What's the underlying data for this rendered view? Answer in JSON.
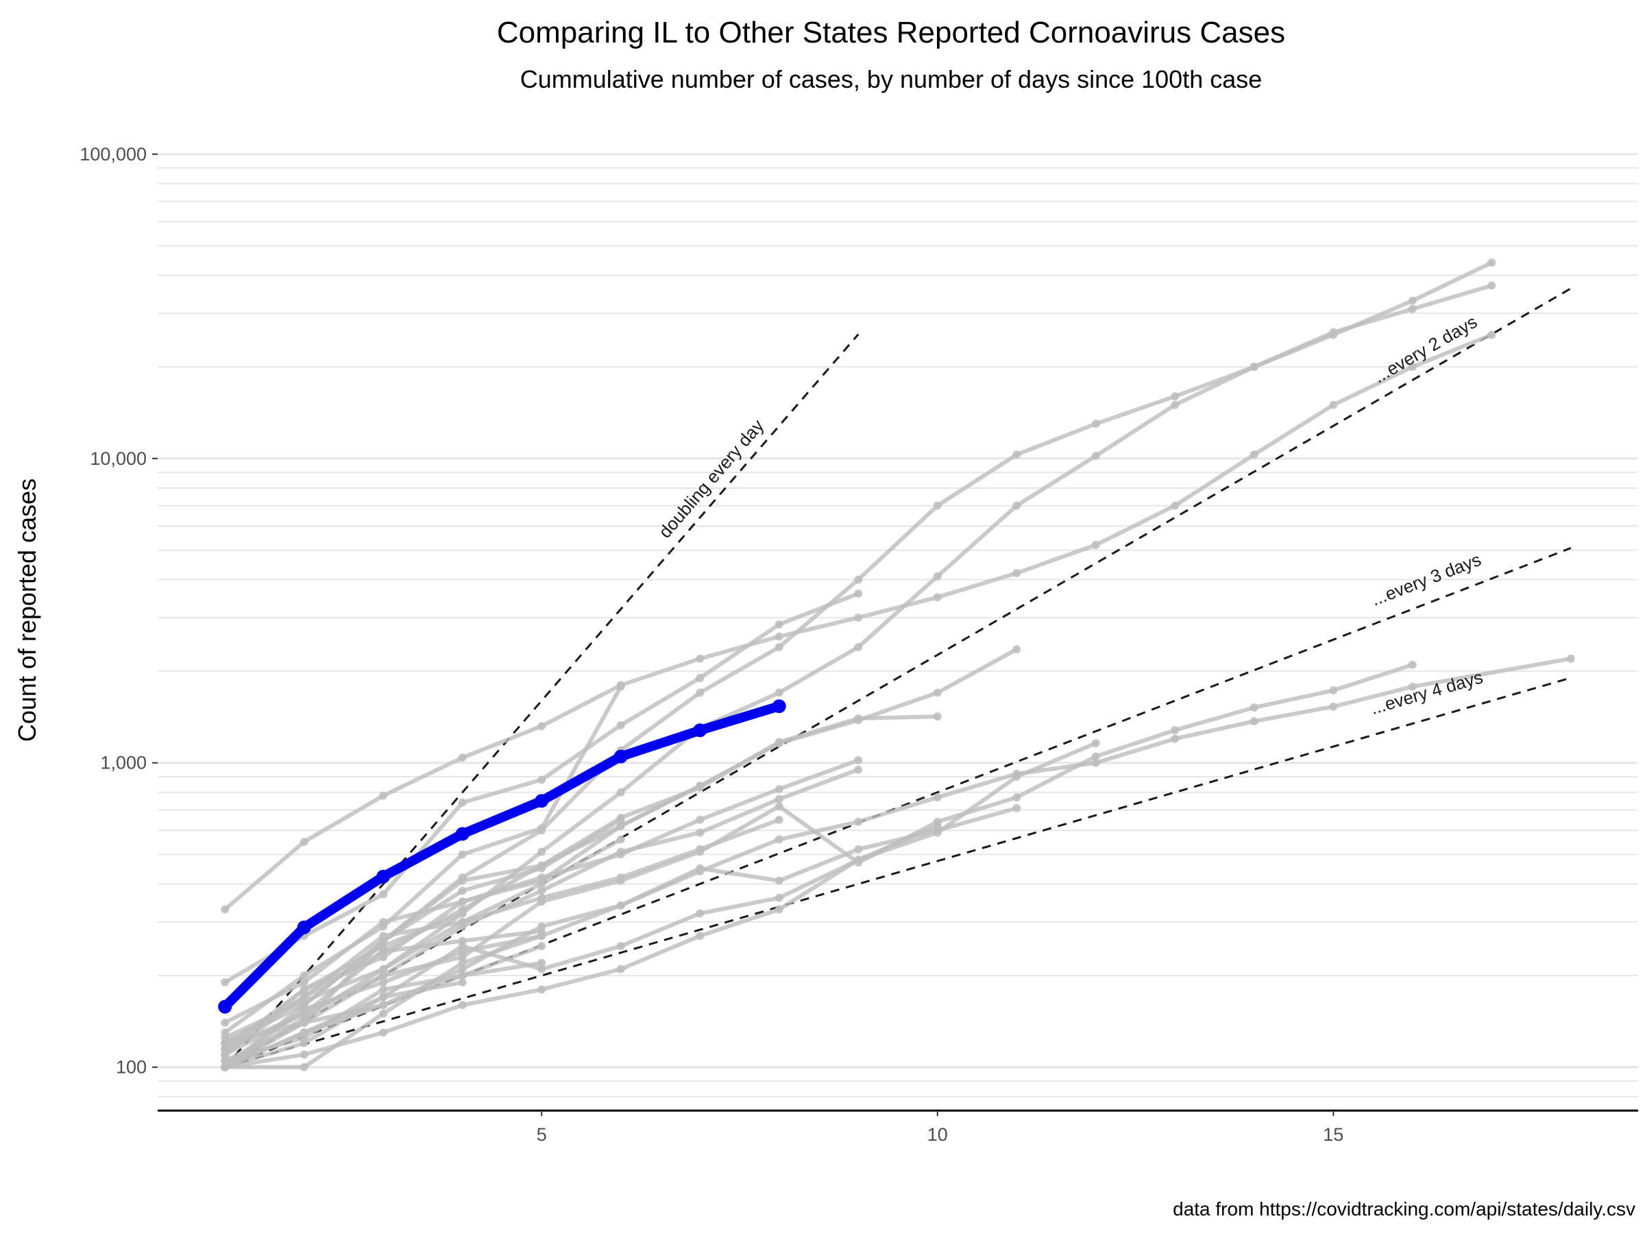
{
  "chart_data": {
    "type": "line",
    "title": "Comparing IL to Other States Reported Cornoavirus Cases",
    "subtitle": "Cummulative number of cases, by number of days since 100th case",
    "xlabel": "",
    "ylabel": "Count of reported cases",
    "caption": "data from https://covidtracking.com/api/states/daily.csv",
    "y_scale": "log10",
    "xlim": [
      0.15,
      18.85
    ],
    "ylim": [
      72,
      140000
    ],
    "x_ticks": [
      {
        "value": 5,
        "label": "5"
      },
      {
        "value": 10,
        "label": "10"
      },
      {
        "value": 15,
        "label": "15"
      }
    ],
    "y_ticks": [
      {
        "value": 100,
        "label": "100"
      },
      {
        "value": 1000,
        "label": "1,000"
      },
      {
        "value": 10000,
        "label": "10,000"
      },
      {
        "value": 100000,
        "label": "100,000"
      }
    ],
    "grid": true,
    "colors": {
      "highlight": "#0000ee",
      "others": "#bdbdbd",
      "reference": "#1a1a1a",
      "grid": "#e6e6e6",
      "axis": "#000000"
    },
    "reference_lines": [
      {
        "label": "doubling every day",
        "doubling_days": 1,
        "x_end": 9.0
      },
      {
        "label": "...every 2 days",
        "doubling_days": 2,
        "x_end": 18.0
      },
      {
        "label": "...every 3 days",
        "doubling_days": 3,
        "x_end": 18.0
      },
      {
        "label": "...every 4 days",
        "doubling_days": 4,
        "x_end": 18.0
      }
    ],
    "highlight_series": {
      "name": "IL",
      "x": [
        1,
        2,
        3,
        4,
        5,
        6,
        7,
        8
      ],
      "values": [
        158,
        288,
        423,
        584,
        750,
        1049,
        1279,
        1535
      ]
    },
    "series": [
      {
        "x": [
          1,
          2,
          3,
          4,
          5,
          6,
          7,
          8,
          9,
          10,
          11,
          12,
          13,
          14,
          15,
          16,
          17
        ],
        "values": [
          100,
          160,
          260,
          420,
          600,
          1100,
          1700,
          2400,
          4000,
          7000,
          10300,
          13000,
          16000,
          20000,
          26000,
          31000,
          37000
        ]
      },
      {
        "x": [
          1,
          2,
          3,
          4,
          5,
          6,
          7,
          8,
          9,
          10,
          11,
          12,
          13,
          14,
          15,
          16,
          17
        ],
        "values": [
          100,
          145,
          210,
          320,
          510,
          800,
          1300,
          1700,
          2400,
          4100,
          7000,
          10200,
          15000,
          20000,
          25500,
          33000,
          44000
        ]
      },
      {
        "x": [
          1,
          2,
          3,
          4,
          5,
          6,
          7,
          8,
          9,
          10,
          11,
          12,
          13,
          14,
          15,
          16,
          17
        ],
        "values": [
          330,
          550,
          780,
          1040,
          1320,
          1800,
          2200,
          2600,
          3000,
          3500,
          4200,
          5200,
          7000,
          10300,
          15000,
          20000,
          25500
        ]
      },
      {
        "x": [
          1,
          2,
          3,
          4,
          5,
          6,
          7,
          8,
          9
        ],
        "values": [
          190,
          270,
          370,
          740,
          880,
          1330,
          1900,
          2850,
          3600
        ]
      },
      {
        "x": [
          1,
          2,
          3,
          4,
          5,
          6
        ],
        "values": [
          130,
          200,
          290,
          500,
          610,
          1780
        ]
      },
      {
        "x": [
          1,
          2,
          3,
          4,
          5,
          6,
          7,
          8,
          9,
          10,
          11
        ],
        "values": [
          110,
          170,
          240,
          330,
          460,
          620,
          840,
          1160,
          1380,
          1700,
          2360
        ]
      },
      {
        "x": [
          1,
          2,
          3,
          4,
          5,
          6,
          7,
          8,
          9,
          10
        ],
        "values": [
          120,
          160,
          260,
          410,
          460,
          660,
          830,
          1170,
          1400,
          1420
        ]
      },
      {
        "x": [
          1,
          2,
          3,
          4,
          5,
          6,
          7,
          8,
          9
        ],
        "values": [
          140,
          190,
          300,
          350,
          420,
          500,
          650,
          820,
          1020
        ]
      },
      {
        "x": [
          1,
          2,
          3,
          4,
          5,
          6,
          7,
          8,
          9
        ],
        "values": [
          115,
          150,
          200,
          290,
          380,
          510,
          590,
          760,
          950
        ]
      },
      {
        "x": [
          1,
          2,
          3,
          4,
          5,
          6,
          7,
          8,
          9,
          10,
          11,
          12,
          13,
          14,
          15,
          16,
          18
        ],
        "values": [
          100,
          130,
          160,
          210,
          290,
          340,
          440,
          560,
          640,
          770,
          920,
          1000,
          1200,
          1370,
          1530,
          1780,
          2200
        ]
      },
      {
        "x": [
          1,
          2,
          3,
          4,
          5,
          6,
          7,
          8,
          9,
          10,
          11,
          12,
          13,
          14,
          15,
          16
        ],
        "values": [
          105,
          140,
          200,
          230,
          350,
          410,
          510,
          720,
          470,
          640,
          770,
          1050,
          1280,
          1520,
          1730,
          2100
        ]
      },
      {
        "x": [
          1,
          2,
          3,
          4,
          5,
          6,
          7,
          8,
          9,
          10,
          11
        ],
        "values": [
          100,
          100,
          150,
          220,
          270,
          340,
          450,
          410,
          520,
          600,
          710
        ]
      },
      {
        "x": [
          1,
          2,
          3,
          4,
          5,
          6,
          7,
          8,
          9,
          10,
          11,
          12
        ],
        "values": [
          100,
          120,
          170,
          250,
          210,
          250,
          320,
          360,
          480,
          590,
          900,
          1160
        ]
      },
      {
        "x": [
          1,
          2,
          3,
          4,
          5,
          6,
          7,
          8,
          9,
          10
        ],
        "values": [
          100,
          110,
          130,
          160,
          180,
          210,
          270,
          330,
          480,
          620
        ]
      },
      {
        "x": [
          1,
          2,
          3,
          4,
          5,
          6,
          7,
          8
        ],
        "values": [
          120,
          170,
          270,
          300,
          360,
          420,
          520,
          650
        ]
      },
      {
        "x": [
          1,
          2,
          3,
          4,
          5,
          6,
          7
        ],
        "values": [
          110,
          180,
          230,
          350,
          410,
          620,
          840
        ]
      },
      {
        "x": [
          1,
          2,
          3,
          4,
          5,
          6
        ],
        "values": [
          100,
          140,
          260,
          380,
          450,
          650
        ]
      },
      {
        "x": [
          1,
          2,
          3,
          4,
          5,
          6
        ],
        "values": [
          125,
          165,
          210,
          300,
          400,
          560
        ]
      },
      {
        "x": [
          1,
          2,
          3,
          4,
          5
        ],
        "values": [
          110,
          150,
          240,
          260,
          280
        ]
      },
      {
        "x": [
          1,
          2,
          3,
          4,
          5
        ],
        "values": [
          100,
          155,
          190,
          240,
          270
        ]
      },
      {
        "x": [
          1,
          2,
          3,
          4,
          5
        ],
        "values": [
          105,
          125,
          180,
          200,
          220
        ]
      },
      {
        "x": [
          1,
          2,
          3,
          4
        ],
        "values": [
          100,
          130,
          170,
          190
        ]
      },
      {
        "x": [
          1,
          2,
          3,
          4,
          5
        ],
        "values": [
          120,
          140,
          160,
          200,
          250
        ]
      },
      {
        "x": [
          1,
          2,
          3,
          4
        ],
        "values": [
          115,
          180,
          250,
          320
        ]
      }
    ]
  }
}
